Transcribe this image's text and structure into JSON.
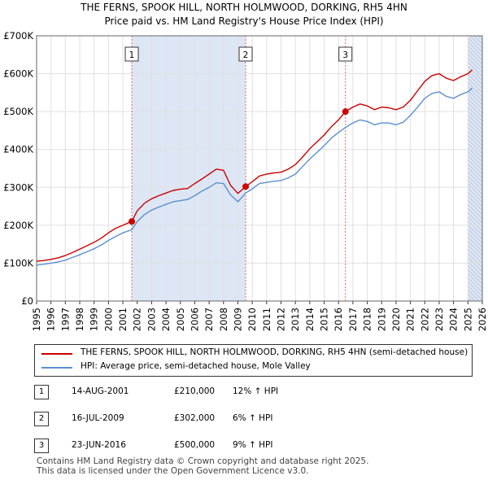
{
  "title_line1": "THE FERNS, SPOOK HILL, NORTH HOLMWOOD, DORKING, RH5 4HN",
  "title_line2": "Price paid vs. HM Land Registry's House Price Index (HPI)",
  "colors": {
    "property": "#cc0000",
    "hpi": "#5b8fcf",
    "shade": "#dde6f5"
  },
  "chart_data": {
    "type": "line",
    "title": "THE FERNS, SPOOK HILL, NORTH HOLMWOOD, DORKING, RH5 4HN",
    "ylim": [
      0,
      700000
    ],
    "xlim": [
      1995,
      2026
    ],
    "yticks": [
      {
        "value": 0,
        "label": "£0"
      },
      {
        "value": 100000,
        "label": "£100K"
      },
      {
        "value": 200000,
        "label": "£200K"
      },
      {
        "value": 300000,
        "label": "£300K"
      },
      {
        "value": 400000,
        "label": "£400K"
      },
      {
        "value": 500000,
        "label": "£500K"
      },
      {
        "value": 600000,
        "label": "£600K"
      },
      {
        "value": 700000,
        "label": "£700K"
      }
    ],
    "xticks": [
      1995,
      1996,
      1997,
      1998,
      1999,
      2000,
      2001,
      2002,
      2003,
      2004,
      2005,
      2006,
      2007,
      2008,
      2009,
      2010,
      2011,
      2012,
      2013,
      2014,
      2015,
      2016,
      2017,
      2018,
      2019,
      2020,
      2021,
      2022,
      2023,
      2024,
      2025,
      2026
    ],
    "series": [
      {
        "name": "THE FERNS, SPOOK HILL, NORTH HOLMWOOD, DORKING, RH5 4HN (semi-detached house)",
        "x": [
          1995.0,
          1995.5,
          1996.0,
          1996.5,
          1997.0,
          1997.5,
          1998.0,
          1998.5,
          1999.0,
          1999.5,
          2000.0,
          2000.5,
          2001.0,
          2001.62,
          2002.0,
          2002.5,
          2003.0,
          2003.5,
          2004.0,
          2004.5,
          2005.0,
          2005.5,
          2006.0,
          2006.5,
          2007.0,
          2007.5,
          2008.0,
          2008.5,
          2009.0,
          2009.54,
          2010.0,
          2010.5,
          2011.0,
          2011.5,
          2012.0,
          2012.5,
          2013.0,
          2013.5,
          2014.0,
          2014.5,
          2015.0,
          2015.5,
          2016.0,
          2016.48,
          2017.0,
          2017.5,
          2018.0,
          2018.5,
          2019.0,
          2019.5,
          2020.0,
          2020.5,
          2021.0,
          2021.5,
          2022.0,
          2022.5,
          2023.0,
          2023.5,
          2024.0,
          2024.5,
          2025.0,
          2025.3
        ],
        "y": [
          105000,
          107000,
          110000,
          114000,
          120000,
          128000,
          137000,
          146000,
          155000,
          166000,
          180000,
          192000,
          200000,
          210000,
          238000,
          258000,
          270000,
          278000,
          285000,
          292000,
          295000,
          297000,
          310000,
          322000,
          335000,
          348000,
          345000,
          305000,
          284000,
          302000,
          315000,
          330000,
          335000,
          338000,
          340000,
          348000,
          360000,
          380000,
          402000,
          420000,
          438000,
          460000,
          478000,
          500000,
          512000,
          520000,
          515000,
          505000,
          512000,
          510000,
          505000,
          512000,
          530000,
          555000,
          580000,
          595000,
          600000,
          588000,
          582000,
          592000,
          600000,
          610000
        ]
      },
      {
        "name": "HPI: Average price, semi-detached house, Mole Valley",
        "x": [
          1995.0,
          1995.5,
          1996.0,
          1996.5,
          1997.0,
          1997.5,
          1998.0,
          1998.5,
          1999.0,
          1999.5,
          2000.0,
          2000.5,
          2001.0,
          2001.62,
          2002.0,
          2002.5,
          2003.0,
          2003.5,
          2004.0,
          2004.5,
          2005.0,
          2005.5,
          2006.0,
          2006.5,
          2007.0,
          2007.5,
          2008.0,
          2008.5,
          2009.0,
          2009.54,
          2010.0,
          2010.5,
          2011.0,
          2011.5,
          2012.0,
          2012.5,
          2013.0,
          2013.5,
          2014.0,
          2014.5,
          2015.0,
          2015.5,
          2016.0,
          2016.48,
          2017.0,
          2017.5,
          2018.0,
          2018.5,
          2019.0,
          2019.5,
          2020.0,
          2020.5,
          2021.0,
          2021.5,
          2022.0,
          2022.5,
          2023.0,
          2023.5,
          2024.0,
          2024.5,
          2025.0,
          2025.3
        ],
        "y": [
          95000,
          97000,
          100000,
          103000,
          108000,
          115000,
          122000,
          130000,
          138000,
          148000,
          160000,
          170000,
          180000,
          188000,
          210000,
          228000,
          240000,
          248000,
          255000,
          262000,
          265000,
          268000,
          278000,
          290000,
          300000,
          312000,
          310000,
          280000,
          262000,
          285000,
          296000,
          310000,
          313000,
          316000,
          318000,
          325000,
          335000,
          355000,
          375000,
          392000,
          410000,
          430000,
          445000,
          458000,
          470000,
          478000,
          474000,
          465000,
          470000,
          470000,
          465000,
          472000,
          490000,
          512000,
          535000,
          548000,
          552000,
          540000,
          535000,
          545000,
          552000,
          562000
        ]
      }
    ],
    "sales": [
      {
        "marker": "1",
        "x": 2001.62,
        "y": 210000
      },
      {
        "marker": "2",
        "x": 2009.54,
        "y": 302000
      },
      {
        "marker": "3",
        "x": 2016.48,
        "y": 500000
      }
    ],
    "shaded_ranges": [
      [
        2001.62,
        2009.54
      ],
      [
        2025.0,
        2026.0
      ]
    ]
  },
  "legend": {
    "property_label": "THE FERNS, SPOOK HILL, NORTH HOLMWOOD, DORKING, RH5 4HN (semi-detached house)",
    "hpi_label": "HPI: Average price, semi-detached house, Mole Valley"
  },
  "transactions": [
    {
      "num": "1",
      "date": "14-AUG-2001",
      "price": "£210,000",
      "delta": "12% ↑ HPI"
    },
    {
      "num": "2",
      "date": "16-JUL-2009",
      "price": "£302,000",
      "delta": "6% ↑ HPI"
    },
    {
      "num": "3",
      "date": "23-JUN-2016",
      "price": "£500,000",
      "delta": "9% ↑ HPI"
    }
  ],
  "footer_line1": "Contains HM Land Registry data © Crown copyright and database right 2025.",
  "footer_line2": "This data is licensed under the Open Government Licence v3.0."
}
